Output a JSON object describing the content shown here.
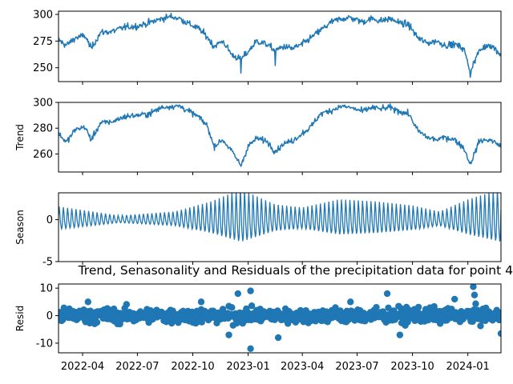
{
  "chart_data": {
    "type": "line",
    "title": "Trend, Senasonality and Residuals of the precipitation data for point 4",
    "color": "#1f77b4",
    "x_range": [
      "2022-02-20",
      "2024-02-25"
    ],
    "x_ticks": [
      "2022-04-01",
      "2022-07-01",
      "2022-10-01",
      "2023-01-01",
      "2023-04-01",
      "2023-07-01",
      "2023-10-01",
      "2024-01-01"
    ],
    "x_tick_labels": [
      "2022-04",
      "2022-07",
      "2022-10",
      "2023-01",
      "2023-04",
      "2023-07",
      "2023-10",
      "2024-01"
    ],
    "panels": [
      {
        "key": "observed",
        "ylabel": "",
        "style": "line",
        "ylim": [
          237,
          303
        ],
        "yticks": [
          250,
          275,
          300
        ],
        "points": [
          [
            "2022-02-20",
            276
          ],
          [
            "2022-03-05",
            271
          ],
          [
            "2022-03-20",
            278
          ],
          [
            "2022-04-05",
            280
          ],
          [
            "2022-04-15",
            268
          ],
          [
            "2022-05-01",
            283
          ],
          [
            "2022-05-20",
            284
          ],
          [
            "2022-06-10",
            288
          ],
          [
            "2022-07-01",
            289
          ],
          [
            "2022-07-20",
            292
          ],
          [
            "2022-08-10",
            296
          ],
          [
            "2022-08-25",
            298
          ],
          [
            "2022-09-10",
            296
          ],
          [
            "2022-09-25",
            291
          ],
          [
            "2022-10-10",
            287
          ],
          [
            "2022-10-25",
            279
          ],
          [
            "2022-11-05",
            270
          ],
          [
            "2022-11-20",
            275
          ],
          [
            "2022-12-05",
            262
          ],
          [
            "2022-12-20",
            258
          ],
          [
            "2023-01-01",
            265
          ],
          [
            "2023-01-15",
            275
          ],
          [
            "2023-02-01",
            272
          ],
          [
            "2023-02-15",
            266
          ],
          [
            "2023-03-01",
            270
          ],
          [
            "2023-03-15",
            268
          ],
          [
            "2023-04-01",
            272
          ],
          [
            "2023-04-15",
            278
          ],
          [
            "2023-05-01",
            285
          ],
          [
            "2023-05-20",
            293
          ],
          [
            "2023-06-05",
            296
          ],
          [
            "2023-06-20",
            297
          ],
          [
            "2023-07-10",
            293
          ],
          [
            "2023-07-25",
            296
          ],
          [
            "2023-08-10",
            294
          ],
          [
            "2023-08-25",
            296
          ],
          [
            "2023-09-10",
            292
          ],
          [
            "2023-09-25",
            290
          ],
          [
            "2023-10-10",
            278
          ],
          [
            "2023-10-25",
            273
          ],
          [
            "2023-11-10",
            275
          ],
          [
            "2023-11-25",
            271
          ],
          [
            "2023-12-10",
            272
          ],
          [
            "2023-12-25",
            268
          ],
          [
            "2024-01-05",
            247
          ],
          [
            "2024-01-20",
            266
          ],
          [
            "2024-02-05",
            272
          ],
          [
            "2024-02-15",
            268
          ],
          [
            "2024-02-25",
            262
          ]
        ],
        "dips": [
          [
            "2022-12-20",
            245
          ],
          [
            "2024-01-05",
            241
          ],
          [
            "2023-02-15",
            252
          ]
        ]
      },
      {
        "key": "trend",
        "ylabel": "Trend",
        "style": "line",
        "ylim": [
          246,
          300
        ],
        "yticks": [
          260,
          280,
          300
        ],
        "points": [
          [
            "2022-02-20",
            276
          ],
          [
            "2022-03-05",
            269
          ],
          [
            "2022-03-20",
            279
          ],
          [
            "2022-04-05",
            281
          ],
          [
            "2022-04-15",
            271
          ],
          [
            "2022-05-01",
            284
          ],
          [
            "2022-05-20",
            285
          ],
          [
            "2022-06-10",
            289
          ],
          [
            "2022-07-01",
            290
          ],
          [
            "2022-07-20",
            291
          ],
          [
            "2022-08-10",
            296
          ],
          [
            "2022-08-25",
            297
          ],
          [
            "2022-09-10",
            297
          ],
          [
            "2022-09-25",
            293
          ],
          [
            "2022-10-10",
            289
          ],
          [
            "2022-10-25",
            282
          ],
          [
            "2022-11-05",
            266
          ],
          [
            "2022-11-20",
            271
          ],
          [
            "2022-12-05",
            262
          ],
          [
            "2022-12-20",
            251
          ],
          [
            "2023-01-01",
            266
          ],
          [
            "2023-01-15",
            272
          ],
          [
            "2023-02-01",
            270
          ],
          [
            "2023-02-15",
            262
          ],
          [
            "2023-03-01",
            268
          ],
          [
            "2023-03-15",
            270
          ],
          [
            "2023-04-01",
            276
          ],
          [
            "2023-04-15",
            281
          ],
          [
            "2023-05-01",
            291
          ],
          [
            "2023-05-20",
            294
          ],
          [
            "2023-06-05",
            297
          ],
          [
            "2023-06-20",
            296
          ],
          [
            "2023-07-10",
            293
          ],
          [
            "2023-07-25",
            296
          ],
          [
            "2023-08-10",
            295
          ],
          [
            "2023-08-25",
            296
          ],
          [
            "2023-09-10",
            293
          ],
          [
            "2023-09-25",
            291
          ],
          [
            "2023-10-10",
            278
          ],
          [
            "2023-10-25",
            273
          ],
          [
            "2023-11-10",
            271
          ],
          [
            "2023-11-25",
            273
          ],
          [
            "2023-12-10",
            271
          ],
          [
            "2023-12-25",
            265
          ],
          [
            "2024-01-05",
            252
          ],
          [
            "2024-01-20",
            270
          ],
          [
            "2024-02-05",
            271
          ],
          [
            "2024-02-15",
            269
          ],
          [
            "2024-02-25",
            266
          ]
        ]
      },
      {
        "key": "seasonal",
        "ylabel": "Season",
        "style": "oscillation",
        "ylim": [
          -5,
          3.2
        ],
        "yticks": [
          -5,
          0
        ],
        "envelope": [
          [
            "2022-02-20",
            1.3
          ],
          [
            "2022-06-01",
            0.4
          ],
          [
            "2022-09-01",
            0.8
          ],
          [
            "2022-11-01",
            1.8
          ],
          [
            "2022-12-20",
            3.0
          ],
          [
            "2023-02-15",
            1.5
          ],
          [
            "2023-04-01",
            1.2
          ],
          [
            "2023-06-01",
            2.0
          ],
          [
            "2023-08-01",
            1.8
          ],
          [
            "2023-10-01",
            1.4
          ],
          [
            "2023-11-15",
            0.8
          ],
          [
            "2024-01-01",
            2.0
          ],
          [
            "2024-02-25",
            3.0
          ]
        ]
      },
      {
        "key": "resid",
        "ylabel": "Resid",
        "style": "scatter",
        "ylim": [
          -13.5,
          11.5
        ],
        "yticks": [
          -10,
          0,
          10
        ],
        "outliers": [
          [
            "2023-01-05",
            -12
          ],
          [
            "2024-01-10",
            10.5
          ],
          [
            "2023-01-05",
            9
          ],
          [
            "2022-12-15",
            8
          ],
          [
            "2023-02-20",
            -8
          ],
          [
            "2023-08-20",
            8
          ],
          [
            "2024-01-12",
            7.5
          ],
          [
            "2022-11-30",
            -7
          ],
          [
            "2022-04-10",
            5
          ],
          [
            "2023-06-20",
            5
          ],
          [
            "2024-02-25",
            -6.5
          ],
          [
            "2022-10-15",
            5
          ],
          [
            "2023-09-10",
            -7
          ],
          [
            "2023-12-10",
            6
          ]
        ]
      }
    ]
  }
}
